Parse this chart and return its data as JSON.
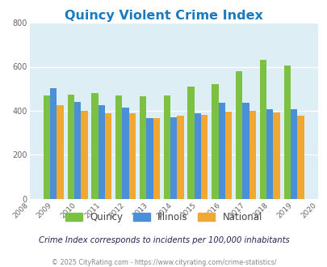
{
  "title": "Quincy Violent Crime Index",
  "years": [
    2009,
    2010,
    2011,
    2012,
    2013,
    2014,
    2015,
    2016,
    2017,
    2018,
    2019
  ],
  "quincy": [
    470,
    472,
    480,
    468,
    465,
    468,
    510,
    520,
    578,
    630,
    605
  ],
  "illinois": [
    503,
    440,
    425,
    415,
    368,
    370,
    388,
    438,
    438,
    407,
    407
  ],
  "national": [
    425,
    400,
    388,
    387,
    368,
    376,
    383,
    397,
    399,
    393,
    379
  ],
  "quincy_color": "#7dc142",
  "illinois_color": "#4a90d9",
  "national_color": "#f0a832",
  "bg_color": "#deeef5",
  "xlim": [
    2008,
    2020
  ],
  "ylim": [
    0,
    800
  ],
  "yticks": [
    0,
    200,
    400,
    600,
    800
  ],
  "bar_width": 0.28,
  "subtitle": "Crime Index corresponds to incidents per 100,000 inhabitants",
  "footer": "© 2025 CityRating.com - https://www.cityrating.com/crime-statistics/"
}
